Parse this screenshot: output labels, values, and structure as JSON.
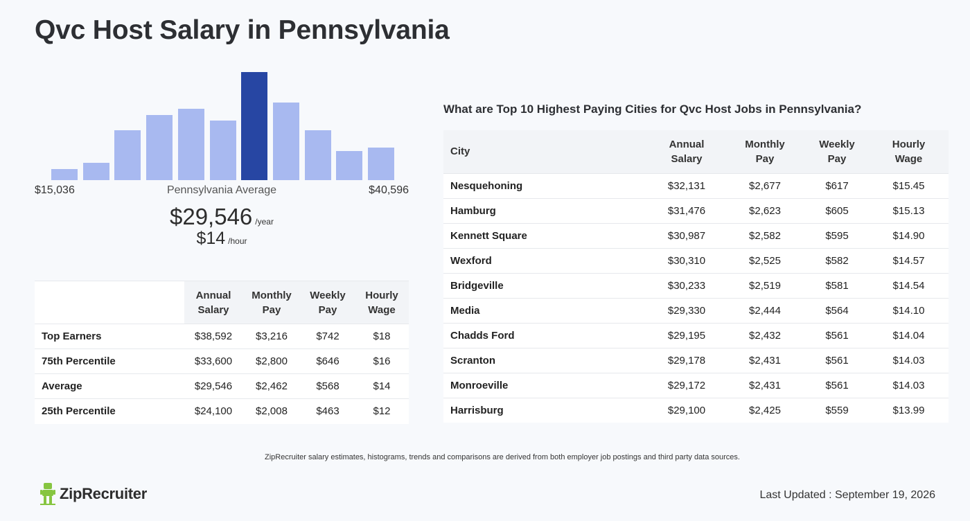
{
  "page_title": "Qvc Host Salary in Pennsylvania",
  "histogram": {
    "min_label": "$15,036",
    "max_label": "$40,596",
    "avg_label": "Pennsylvania Average",
    "bar_heights_relative": [
      0.1,
      0.16,
      0.46,
      0.6,
      0.66,
      0.55,
      1.0,
      0.72,
      0.46,
      0.27,
      0.3
    ],
    "highlight_index": 6,
    "bar_color": "#a8b9f0",
    "highlight_color": "#2746a3"
  },
  "salary": {
    "annual": "$29,546",
    "annual_unit": "/year",
    "hourly": "$14",
    "hourly_unit": "/hour"
  },
  "percentile_table": {
    "headers": [
      "",
      "Annual\nSalary",
      "Monthly\nPay",
      "Weekly\nPay",
      "Hourly\nWage"
    ],
    "rows": [
      [
        "Top Earners",
        "$38,592",
        "$3,216",
        "$742",
        "$18"
      ],
      [
        "75th Percentile",
        "$33,600",
        "$2,800",
        "$646",
        "$16"
      ],
      [
        "Average",
        "$29,546",
        "$2,462",
        "$568",
        "$14"
      ],
      [
        "25th Percentile",
        "$24,100",
        "$2,008",
        "$463",
        "$12"
      ]
    ]
  },
  "cities": {
    "heading": "What are Top 10 Highest Paying Cities for Qvc Host Jobs in Pennsylvania?",
    "headers": [
      "City",
      "Annual\nSalary",
      "Monthly\nPay",
      "Weekly\nPay",
      "Hourly\nWage"
    ],
    "rows": [
      [
        "Nesquehoning",
        "$32,131",
        "$2,677",
        "$617",
        "$15.45"
      ],
      [
        "Hamburg",
        "$31,476",
        "$2,623",
        "$605",
        "$15.13"
      ],
      [
        "Kennett Square",
        "$30,987",
        "$2,582",
        "$595",
        "$14.90"
      ],
      [
        "Wexford",
        "$30,310",
        "$2,525",
        "$582",
        "$14.57"
      ],
      [
        "Bridgeville",
        "$30,233",
        "$2,519",
        "$581",
        "$14.54"
      ],
      [
        "Media",
        "$29,330",
        "$2,444",
        "$564",
        "$14.10"
      ],
      [
        "Chadds Ford",
        "$29,195",
        "$2,432",
        "$561",
        "$14.04"
      ],
      [
        "Scranton",
        "$29,178",
        "$2,431",
        "$561",
        "$14.03"
      ],
      [
        "Monroeville",
        "$29,172",
        "$2,431",
        "$561",
        "$14.03"
      ],
      [
        "Harrisburg",
        "$29,100",
        "$2,425",
        "$559",
        "$13.99"
      ]
    ]
  },
  "disclaimer": "ZipRecruiter salary estimates, histograms, trends and comparisons are derived from both employer job postings and third party data sources.",
  "brand": {
    "name": "ZipRecruiter",
    "icon": "ziprecruiter-logo-icon",
    "color": "#86c540"
  },
  "last_updated": "Last Updated : September 19, 2026"
}
